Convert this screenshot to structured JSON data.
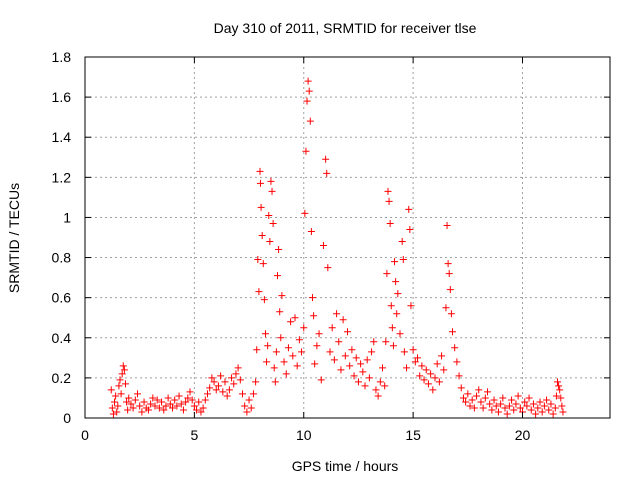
{
  "chart_data": {
    "type": "scatter",
    "title": "Day 310 of 2011, SRMTID for receiver tlse",
    "xlabel": "GPS time / hours",
    "ylabel": "SRMTID / TECUs",
    "xlim": [
      0,
      24
    ],
    "ylim": [
      0,
      1.8
    ],
    "xticks": [
      0,
      5,
      10,
      15,
      20
    ],
    "yticks": [
      0,
      0.2,
      0.4,
      0.6,
      0.8,
      1,
      1.2,
      1.4,
      1.6,
      1.8
    ],
    "xtick_labels": [
      "0",
      "5",
      "10",
      "15",
      "20"
    ],
    "ytick_labels": [
      "0",
      "0.2",
      "0.4",
      "0.6",
      "0.8",
      "1",
      "1.2",
      "1.4",
      "1.6",
      "1.8"
    ],
    "grid": true,
    "marker": "plus",
    "color": "#ff0000",
    "series": [
      {
        "points": [
          [
            1.2,
            0.14
          ],
          [
            1.25,
            0.05
          ],
          [
            1.3,
            0.02
          ],
          [
            1.35,
            0.08
          ],
          [
            1.4,
            0.11
          ],
          [
            1.45,
            0.03
          ],
          [
            1.5,
            0.06
          ],
          [
            1.55,
            0.16
          ],
          [
            1.6,
            0.19
          ],
          [
            1.65,
            0.12
          ],
          [
            1.7,
            0.22
          ],
          [
            1.75,
            0.26
          ],
          [
            1.8,
            0.24
          ],
          [
            1.85,
            0.17
          ],
          [
            1.9,
            0.08
          ],
          [
            1.95,
            0.04
          ],
          [
            2.0,
            0.1
          ],
          [
            2.1,
            0.07
          ],
          [
            2.2,
            0.05
          ],
          [
            2.3,
            0.09
          ],
          [
            2.4,
            0.12
          ],
          [
            2.5,
            0.06
          ],
          [
            2.6,
            0.03
          ],
          [
            2.7,
            0.08
          ],
          [
            2.8,
            0.05
          ],
          [
            2.9,
            0.04
          ],
          [
            3.0,
            0.07
          ],
          [
            3.1,
            0.1
          ],
          [
            3.2,
            0.06
          ],
          [
            3.3,
            0.09
          ],
          [
            3.4,
            0.05
          ],
          [
            3.5,
            0.08
          ],
          [
            3.6,
            0.04
          ],
          [
            3.7,
            0.06
          ],
          [
            3.8,
            0.1
          ],
          [
            3.9,
            0.07
          ],
          [
            4.0,
            0.05
          ],
          [
            4.1,
            0.09
          ],
          [
            4.2,
            0.06
          ],
          [
            4.3,
            0.11
          ],
          [
            4.4,
            0.07
          ],
          [
            4.5,
            0.04
          ],
          [
            4.6,
            0.08
          ],
          [
            4.7,
            0.1
          ],
          [
            4.8,
            0.13
          ],
          [
            4.9,
            0.09
          ],
          [
            5.0,
            0.06
          ],
          [
            5.1,
            0.04
          ],
          [
            5.2,
            0.08
          ],
          [
            5.3,
            0.03
          ],
          [
            5.4,
            0.05
          ],
          [
            5.5,
            0.09
          ],
          [
            5.6,
            0.12
          ],
          [
            5.7,
            0.15
          ],
          [
            5.8,
            0.2
          ],
          [
            5.9,
            0.18
          ],
          [
            6.0,
            0.14
          ],
          [
            6.1,
            0.16
          ],
          [
            6.2,
            0.21
          ],
          [
            6.3,
            0.13
          ],
          [
            6.4,
            0.18
          ],
          [
            6.5,
            0.11
          ],
          [
            6.6,
            0.14
          ],
          [
            6.7,
            0.2
          ],
          [
            6.8,
            0.17
          ],
          [
            6.9,
            0.22
          ],
          [
            7.0,
            0.25
          ],
          [
            7.1,
            0.19
          ],
          [
            7.2,
            0.12
          ],
          [
            7.3,
            0.06
          ],
          [
            7.4,
            0.03
          ],
          [
            7.5,
            0.09
          ],
          [
            7.6,
            0.05
          ],
          [
            7.7,
            0.12
          ],
          [
            7.8,
            0.18
          ],
          [
            7.85,
            0.34
          ],
          [
            7.9,
            0.79
          ],
          [
            7.95,
            0.63
          ],
          [
            8.0,
            1.23
          ],
          [
            8.02,
            1.17
          ],
          [
            8.05,
            1.05
          ],
          [
            8.1,
            0.91
          ],
          [
            8.15,
            0.77
          ],
          [
            8.2,
            0.59
          ],
          [
            8.25,
            0.42
          ],
          [
            8.3,
            0.28
          ],
          [
            8.35,
            0.36
          ],
          [
            8.4,
            1.01
          ],
          [
            8.45,
            0.88
          ],
          [
            8.5,
            1.18
          ],
          [
            8.55,
            1.13
          ],
          [
            8.6,
            0.97
          ],
          [
            8.65,
            0.25
          ],
          [
            8.7,
            0.18
          ],
          [
            8.75,
            0.33
          ],
          [
            8.8,
            0.71
          ],
          [
            8.85,
            0.84
          ],
          [
            8.9,
            0.53
          ],
          [
            8.95,
            0.4
          ],
          [
            9.0,
            0.61
          ],
          [
            9.1,
            0.28
          ],
          [
            9.2,
            0.22
          ],
          [
            9.3,
            0.35
          ],
          [
            9.4,
            0.48
          ],
          [
            9.5,
            0.31
          ],
          [
            9.6,
            0.5
          ],
          [
            9.7,
            0.26
          ],
          [
            9.8,
            0.39
          ],
          [
            9.9,
            0.33
          ],
          [
            10.0,
            0.45
          ],
          [
            10.05,
            1.02
          ],
          [
            10.1,
            1.33
          ],
          [
            10.15,
            1.58
          ],
          [
            10.2,
            1.68
          ],
          [
            10.25,
            1.63
          ],
          [
            10.3,
            1.48
          ],
          [
            10.35,
            0.93
          ],
          [
            10.4,
            0.6
          ],
          [
            10.45,
            0.51
          ],
          [
            10.5,
            0.27
          ],
          [
            10.6,
            0.36
          ],
          [
            10.7,
            0.42
          ],
          [
            10.8,
            0.19
          ],
          [
            10.9,
            0.86
          ],
          [
            11.0,
            1.29
          ],
          [
            11.05,
            1.22
          ],
          [
            11.1,
            0.75
          ],
          [
            11.2,
            0.33
          ],
          [
            11.3,
            0.45
          ],
          [
            11.4,
            0.29
          ],
          [
            11.5,
            0.52
          ],
          [
            11.6,
            0.38
          ],
          [
            11.7,
            0.24
          ],
          [
            11.8,
            0.49
          ],
          [
            11.9,
            0.31
          ],
          [
            12.0,
            0.43
          ],
          [
            12.1,
            0.26
          ],
          [
            12.2,
            0.34
          ],
          [
            12.3,
            0.21
          ],
          [
            12.4,
            0.3
          ],
          [
            12.5,
            0.18
          ],
          [
            12.6,
            0.27
          ],
          [
            12.7,
            0.23
          ],
          [
            12.8,
            0.16
          ],
          [
            12.9,
            0.29
          ],
          [
            13.0,
            0.2
          ],
          [
            13.1,
            0.33
          ],
          [
            13.2,
            0.38
          ],
          [
            13.3,
            0.14
          ],
          [
            13.4,
            0.11
          ],
          [
            13.5,
            0.18
          ],
          [
            13.6,
            0.25
          ],
          [
            13.7,
            0.16
          ],
          [
            13.75,
            0.38
          ],
          [
            13.8,
            0.72
          ],
          [
            13.85,
            1.13
          ],
          [
            13.9,
            1.08
          ],
          [
            13.95,
            0.97
          ],
          [
            14.0,
            0.56
          ],
          [
            14.05,
            0.45
          ],
          [
            14.1,
            0.36
          ],
          [
            14.15,
            0.78
          ],
          [
            14.2,
            0.68
          ],
          [
            14.25,
            0.52
          ],
          [
            14.3,
            0.62
          ],
          [
            14.4,
            0.42
          ],
          [
            14.5,
            0.88
          ],
          [
            14.55,
            0.79
          ],
          [
            14.6,
            0.33
          ],
          [
            14.7,
            0.25
          ],
          [
            14.8,
            1.04
          ],
          [
            14.85,
            0.94
          ],
          [
            14.9,
            0.56
          ],
          [
            15.0,
            0.34
          ],
          [
            15.1,
            0.28
          ],
          [
            15.2,
            0.3
          ],
          [
            15.3,
            0.21
          ],
          [
            15.4,
            0.26
          ],
          [
            15.5,
            0.19
          ],
          [
            15.6,
            0.24
          ],
          [
            15.7,
            0.17
          ],
          [
            15.8,
            0.22
          ],
          [
            15.9,
            0.14
          ],
          [
            16.0,
            0.2
          ],
          [
            16.1,
            0.27
          ],
          [
            16.2,
            0.18
          ],
          [
            16.3,
            0.31
          ],
          [
            16.4,
            0.24
          ],
          [
            16.5,
            0.55
          ],
          [
            16.55,
            0.96
          ],
          [
            16.6,
            0.77
          ],
          [
            16.65,
            0.72
          ],
          [
            16.7,
            0.64
          ],
          [
            16.75,
            0.52
          ],
          [
            16.8,
            0.43
          ],
          [
            16.9,
            0.35
          ],
          [
            17.0,
            0.28
          ],
          [
            17.1,
            0.21
          ],
          [
            17.2,
            0.15
          ],
          [
            17.3,
            0.1
          ],
          [
            17.4,
            0.08
          ],
          [
            17.5,
            0.12
          ],
          [
            17.6,
            0.06
          ],
          [
            17.7,
            0.09
          ],
          [
            17.8,
            0.05
          ],
          [
            17.9,
            0.11
          ],
          [
            18.0,
            0.14
          ],
          [
            18.1,
            0.08
          ],
          [
            18.2,
            0.05
          ],
          [
            18.3,
            0.1
          ],
          [
            18.4,
            0.13
          ],
          [
            18.5,
            0.07
          ],
          [
            18.6,
            0.04
          ],
          [
            18.7,
            0.09
          ],
          [
            18.8,
            0.06
          ],
          [
            18.9,
            0.03
          ],
          [
            19.0,
            0.07
          ],
          [
            19.1,
            0.1
          ],
          [
            19.2,
            0.05
          ],
          [
            19.3,
            0.02
          ],
          [
            19.4,
            0.06
          ],
          [
            19.5,
            0.09
          ],
          [
            19.6,
            0.04
          ],
          [
            19.7,
            0.07
          ],
          [
            19.8,
            0.11
          ],
          [
            19.9,
            0.05
          ],
          [
            20.0,
            0.03
          ],
          [
            20.1,
            0.08
          ],
          [
            20.2,
            0.06
          ],
          [
            20.3,
            0.1
          ],
          [
            20.4,
            0.04
          ],
          [
            20.5,
            0.07
          ],
          [
            20.6,
            0.02
          ],
          [
            20.7,
            0.05
          ],
          [
            20.8,
            0.08
          ],
          [
            20.9,
            0.03
          ],
          [
            21.0,
            0.06
          ],
          [
            21.1,
            0.09
          ],
          [
            21.2,
            0.04
          ],
          [
            21.3,
            0.07
          ],
          [
            21.4,
            0.02
          ],
          [
            21.5,
            0.05
          ],
          [
            21.55,
            0.11
          ],
          [
            21.6,
            0.18
          ],
          [
            21.65,
            0.16
          ],
          [
            21.7,
            0.14
          ],
          [
            21.75,
            0.1
          ],
          [
            21.8,
            0.06
          ],
          [
            21.85,
            0.03
          ]
        ]
      }
    ]
  }
}
